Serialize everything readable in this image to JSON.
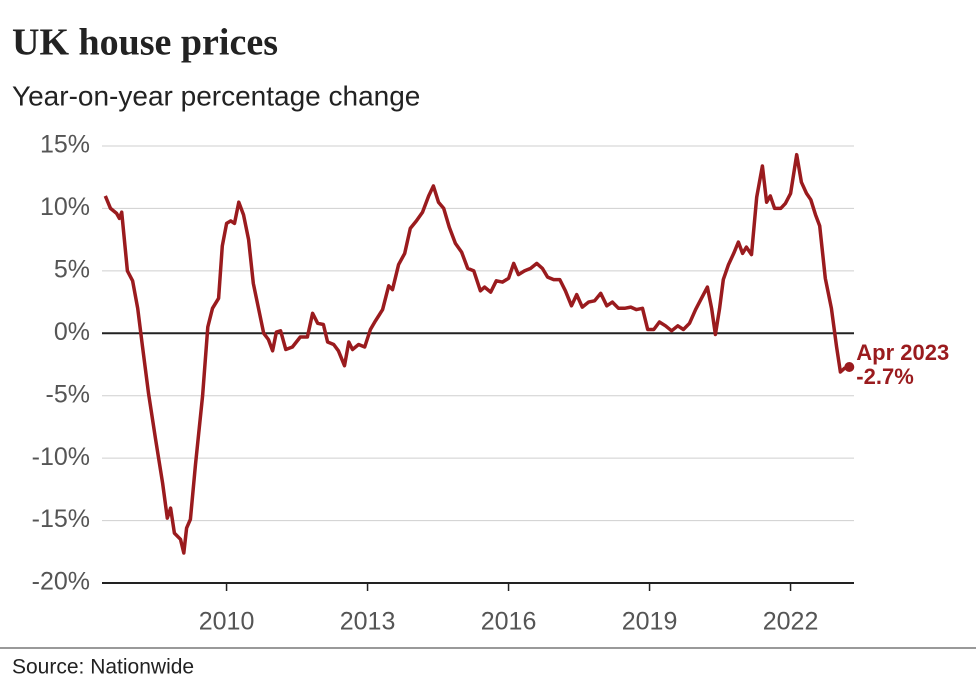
{
  "chart_data": {
    "type": "line",
    "title": "UK house prices",
    "subtitle": "Year-on-year percentage change",
    "source": "Source: Nationwide",
    "annotations": [
      "Apr 2023",
      "-2.7%"
    ],
    "color": "#9a1b1e",
    "grid": true,
    "xlim": [
      2007.35,
      2023.35
    ],
    "xticks": [
      2010,
      2013,
      2016,
      2019,
      2022
    ],
    "ylim": [
      -20,
      15
    ],
    "yticks": [
      {
        "value": 15,
        "label": "15%"
      },
      {
        "value": 10,
        "label": "10%"
      },
      {
        "value": 5,
        "label": "5%"
      },
      {
        "value": 0,
        "label": "0%"
      },
      {
        "value": -5,
        "label": "-5%"
      },
      {
        "value": -10,
        "label": "-10%"
      },
      {
        "value": -15,
        "label": "-15%"
      },
      {
        "value": -20,
        "label": "-20%"
      }
    ],
    "x": [
      2007.42,
      2007.53,
      2007.66,
      2007.72,
      2007.77,
      2007.89,
      2008.0,
      2008.11,
      2008.21,
      2008.34,
      2008.49,
      2008.64,
      2008.74,
      2008.81,
      2008.89,
      2009.02,
      2009.09,
      2009.15,
      2009.23,
      2009.34,
      2009.49,
      2009.6,
      2009.7,
      2009.83,
      2009.91,
      2010.0,
      2010.09,
      2010.17,
      2010.26,
      2010.36,
      2010.47,
      2010.57,
      2010.68,
      2010.79,
      2010.89,
      2010.98,
      2011.06,
      2011.15,
      2011.26,
      2011.4,
      2011.57,
      2011.72,
      2011.83,
      2011.94,
      2012.06,
      2012.15,
      2012.28,
      2012.38,
      2012.51,
      2012.6,
      2012.68,
      2012.81,
      2012.94,
      2013.06,
      2013.17,
      2013.32,
      2013.45,
      2013.53,
      2013.66,
      2013.79,
      2013.91,
      2014.04,
      2014.17,
      2014.3,
      2014.4,
      2014.51,
      2014.62,
      2014.74,
      2014.87,
      2015.0,
      2015.13,
      2015.26,
      2015.4,
      2015.49,
      2015.62,
      2015.74,
      2015.87,
      2016.0,
      2016.11,
      2016.21,
      2016.34,
      2016.47,
      2016.6,
      2016.72,
      2016.83,
      2016.96,
      2017.09,
      2017.21,
      2017.34,
      2017.45,
      2017.57,
      2017.7,
      2017.83,
      2017.96,
      2018.09,
      2018.21,
      2018.34,
      2018.47,
      2018.6,
      2018.72,
      2018.85,
      2018.96,
      2019.09,
      2019.21,
      2019.34,
      2019.47,
      2019.6,
      2019.72,
      2019.85,
      2019.98,
      2020.09,
      2020.23,
      2020.32,
      2020.4,
      2020.49,
      2020.57,
      2020.68,
      2020.79,
      2020.89,
      2020.98,
      2021.06,
      2021.17,
      2021.28,
      2021.4,
      2021.49,
      2021.57,
      2021.66,
      2021.79,
      2021.89,
      2022.0,
      2022.13,
      2022.23,
      2022.34,
      2022.43,
      2022.53,
      2022.62,
      2022.74,
      2022.87,
      2022.98,
      2023.06,
      2023.15,
      2023.25
    ],
    "values": [
      11.0,
      10.0,
      9.6,
      9.2,
      9.7,
      5.0,
      4.2,
      2.0,
      -1.0,
      -4.8,
      -8.5,
      -12.0,
      -14.8,
      -14.0,
      -16.0,
      -16.5,
      -17.6,
      -15.6,
      -14.9,
      -10.5,
      -5.0,
      0.5,
      2.0,
      2.8,
      7.0,
      8.8,
      9.0,
      8.8,
      10.5,
      9.5,
      7.5,
      4.0,
      2.0,
      0.0,
      -0.5,
      -1.4,
      0.1,
      0.2,
      -1.3,
      -1.1,
      -0.3,
      -0.3,
      1.6,
      0.8,
      0.7,
      -0.7,
      -0.9,
      -1.4,
      -2.6,
      -0.7,
      -1.3,
      -0.9,
      -1.1,
      0.3,
      1.0,
      1.9,
      3.8,
      3.5,
      5.5,
      6.4,
      8.4,
      9.0,
      9.7,
      11.0,
      11.8,
      10.5,
      10.0,
      8.5,
      7.2,
      6.5,
      5.2,
      5.0,
      3.4,
      3.7,
      3.3,
      4.2,
      4.1,
      4.4,
      5.6,
      4.7,
      5.0,
      5.2,
      5.6,
      5.2,
      4.5,
      4.3,
      4.3,
      3.4,
      2.2,
      3.1,
      2.1,
      2.5,
      2.6,
      3.2,
      2.2,
      2.5,
      2.0,
      2.0,
      2.1,
      1.9,
      2.0,
      0.3,
      0.3,
      0.9,
      0.6,
      0.2,
      0.6,
      0.3,
      0.8,
      1.9,
      2.7,
      3.7,
      2.0,
      -0.1,
      2.0,
      4.3,
      5.5,
      6.4,
      7.3,
      6.4,
      6.9,
      6.3,
      10.9,
      13.4,
      10.5,
      11.0,
      10.0,
      10.0,
      10.4,
      11.2,
      14.3,
      12.1,
      11.2,
      10.7,
      9.5,
      8.6,
      4.4,
      2.0,
      -1.1,
      -3.1,
      -2.8,
      -2.7
    ]
  }
}
